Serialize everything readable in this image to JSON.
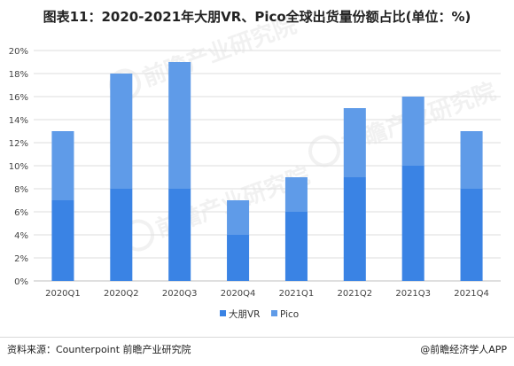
{
  "title": "图表11：2020-2021年大朋VR、Pico全球出货量份额占比(单位：%)",
  "source": "资料来源：Counterpoint 前瞻产业研究院",
  "brand": "@前瞻经济学人APP",
  "watermark": "前瞻产业研究院",
  "colors": {
    "dapeng": "#3a83e4",
    "pico": "#5f9be8",
    "grid": "#dedede",
    "axis_text": "#444444"
  },
  "chart_data": {
    "type": "bar",
    "stacked": true,
    "categories": [
      "2020Q1",
      "2020Q2",
      "2020Q3",
      "2020Q4",
      "2021Q1",
      "2021Q2",
      "2021Q3",
      "2021Q4"
    ],
    "series": [
      {
        "name": "大朋VR",
        "values": [
          7,
          8,
          8,
          4,
          6,
          9,
          10,
          8
        ]
      },
      {
        "name": "Pico",
        "values": [
          6,
          10,
          11,
          3,
          3,
          6,
          6,
          5
        ]
      }
    ],
    "y_ticks": [
      "0%",
      "2%",
      "4%",
      "6%",
      "8%",
      "10%",
      "12%",
      "14%",
      "16%",
      "18%",
      "20%"
    ],
    "ylim": [
      0,
      20
    ],
    "grid": true,
    "legend_position": "bottom-center"
  }
}
